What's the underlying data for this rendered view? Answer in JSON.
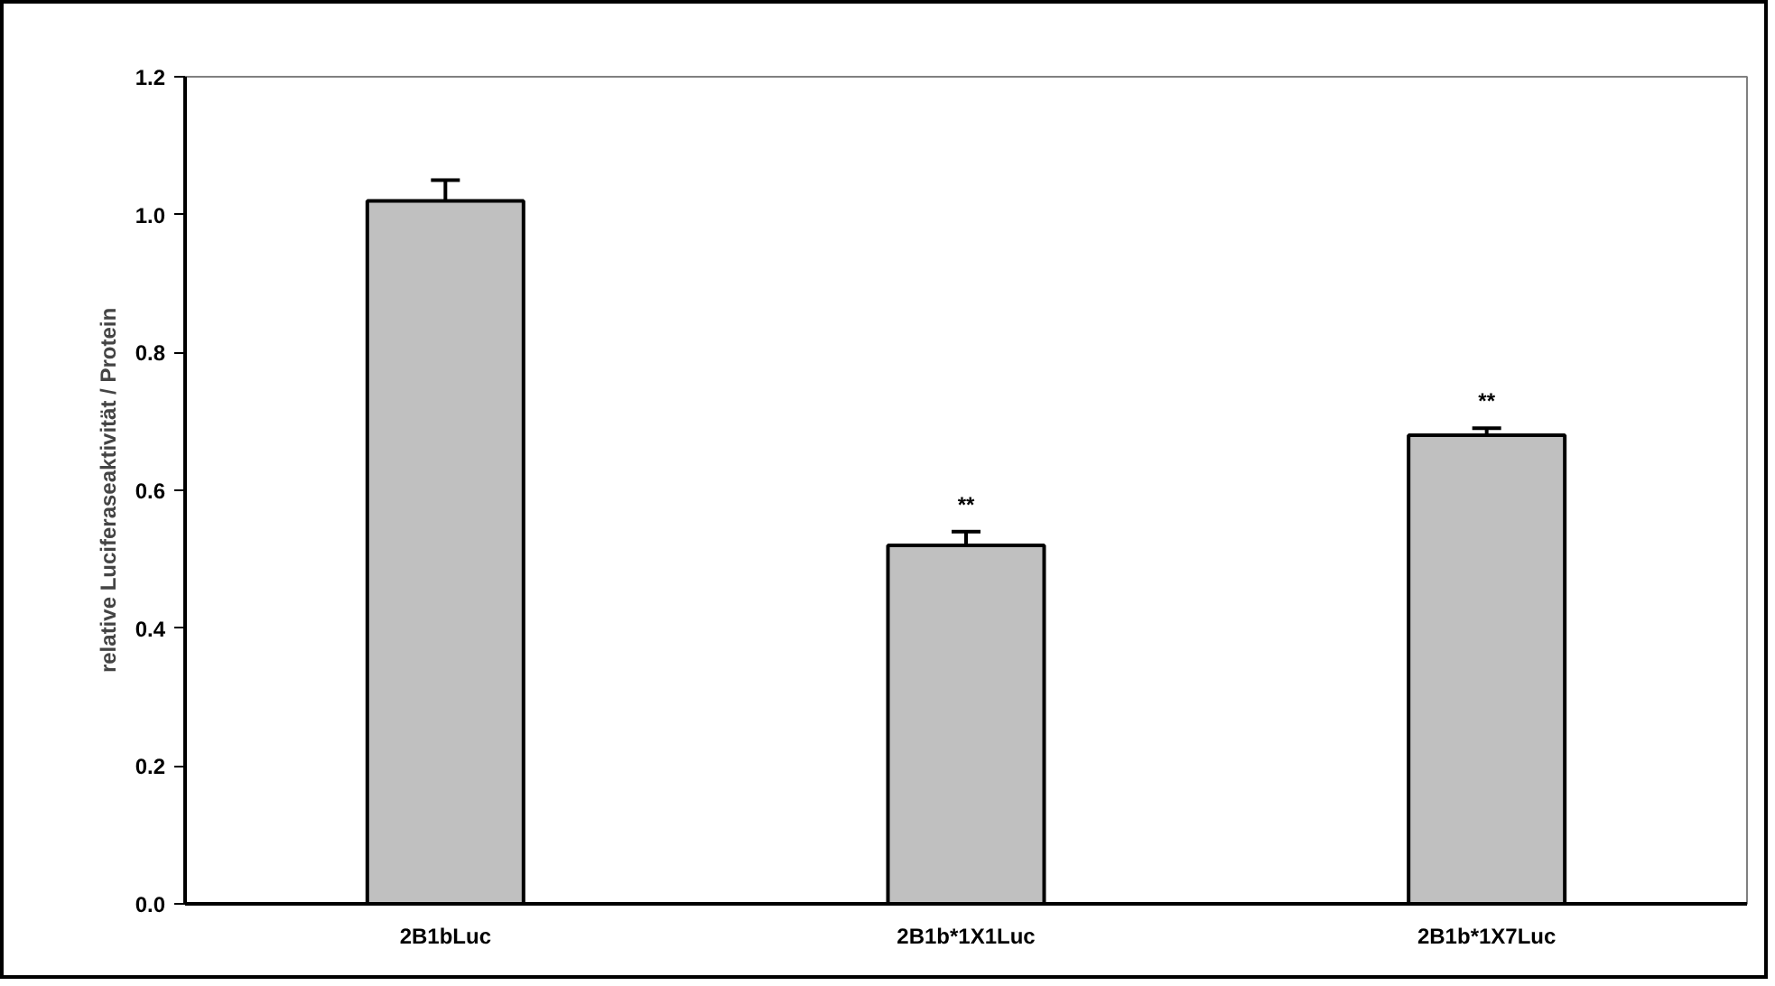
{
  "chart_data": {
    "type": "bar",
    "ylabel": "relative Luciferaseaktivität / Protein",
    "categories": [
      "2B1bLuc",
      "2B1b*1X1Luc",
      "2B1b*1X7Luc"
    ],
    "values": [
      1.02,
      0.52,
      0.68
    ],
    "errors": [
      0.03,
      0.02,
      0.01
    ],
    "color": "#c0c0c0",
    "ylim": [
      0,
      1.2
    ],
    "yticks": [
      {
        "value": 0,
        "label": "0.0"
      },
      0.2,
      0.4,
      0.6,
      0.8,
      {
        "value": 1,
        "label": "1.0"
      },
      1.2
    ],
    "grid": false,
    "annotations": [
      {
        "text": "**",
        "x": "2B1b*1X1Luc",
        "y": 0.54
      },
      {
        "text": "**",
        "x": "2B1b*1X7Luc",
        "y": 0.69
      }
    ]
  }
}
